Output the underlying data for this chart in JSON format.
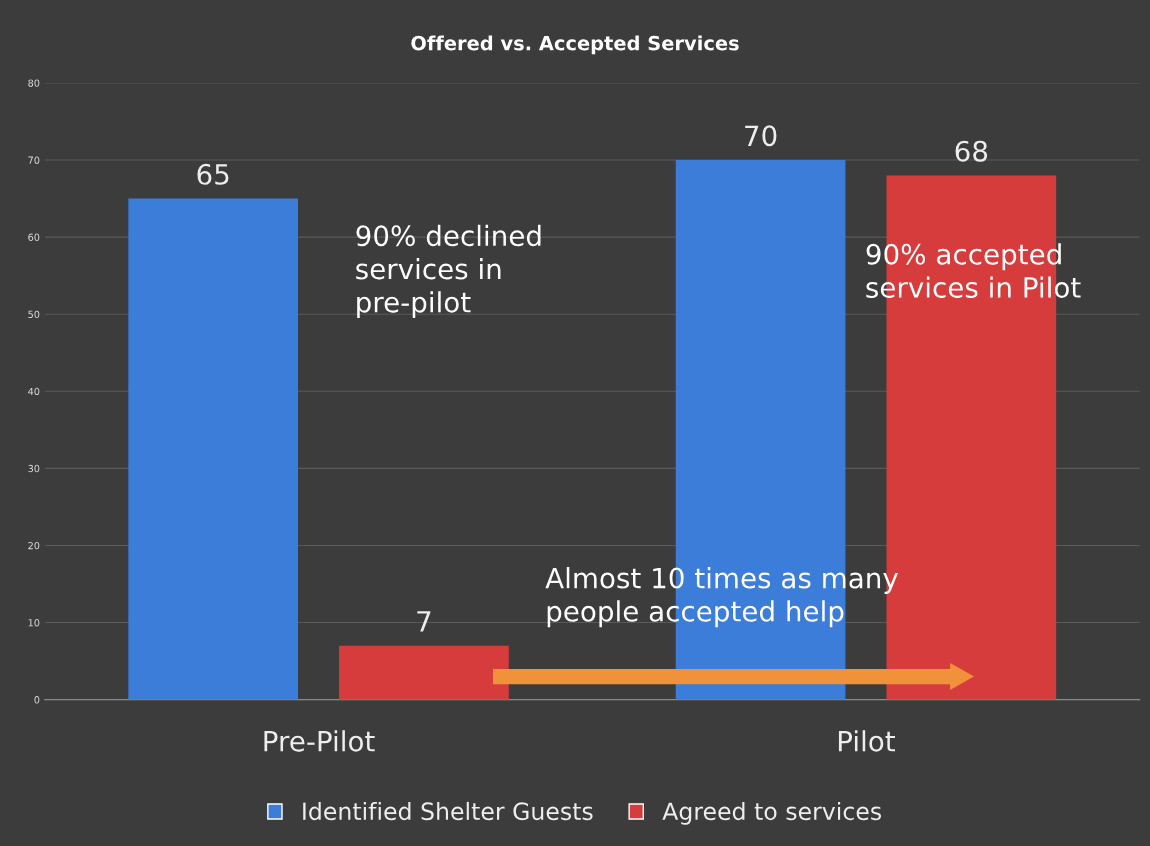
{
  "chart_data": {
    "type": "bar",
    "title": "Offered vs. Accepted Services",
    "categories": [
      "Pre-Pilot",
      "Pilot"
    ],
    "series": [
      {
        "name": "Identified Shelter Guests",
        "color": "#3b7dd8",
        "values": [
          65,
          70
        ]
      },
      {
        "name": "Agreed to services",
        "color": "#d63c3c",
        "values": [
          7,
          68
        ]
      }
    ],
    "ylim": [
      0,
      80
    ],
    "yticks": [
      0,
      10,
      20,
      30,
      40,
      50,
      60,
      70,
      80
    ],
    "grid": "y",
    "legend": "bottom",
    "data_labels": true,
    "annotations": [
      "90% declined\nservices in\npre-pilot",
      "90% accepted\nservices in Pilot",
      "Almost 10 times as many\npeople accepted help"
    ]
  }
}
